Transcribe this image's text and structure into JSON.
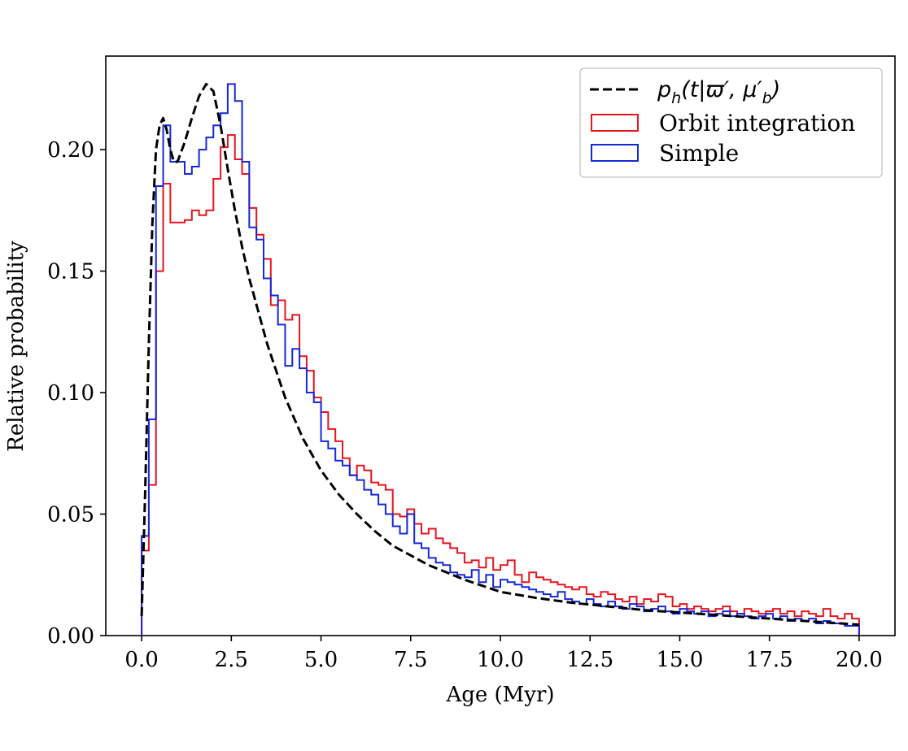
{
  "chart_data": {
    "type": "line",
    "xlabel": "Age (Myr)",
    "ylabel": "Relative probability",
    "xlim": [
      -1.0,
      21.0
    ],
    "ylim": [
      0.0,
      0.2385
    ],
    "xticks": [
      "0.0",
      "2.5",
      "5.0",
      "7.5",
      "10.0",
      "12.5",
      "15.0",
      "17.5",
      "20.0"
    ],
    "yticks": [
      "0.00",
      "0.05",
      "0.10",
      "0.15",
      "0.20"
    ],
    "legend_position": "top-right",
    "grid": false,
    "bins": {
      "start": 0.0,
      "width": 0.2,
      "count": 100
    },
    "curve": {
      "name_parts": [
        "p",
        "h",
        "(t|ϖ′, μ′",
        "b",
        ")"
      ],
      "color": "#000000",
      "style": "dashed",
      "x": [
        0.0,
        0.1,
        0.2,
        0.3,
        0.4,
        0.5,
        0.6,
        0.7,
        0.8,
        0.9,
        1.0,
        1.2,
        1.4,
        1.6,
        1.8,
        2.0,
        2.2,
        2.4,
        2.6,
        2.8,
        3.0,
        3.5,
        4.0,
        4.5,
        5.0,
        5.5,
        6.0,
        6.5,
        7.0,
        7.5,
        8.0,
        9.0,
        10.0,
        11.0,
        12.0,
        13.0,
        14.0,
        15.0,
        16.0,
        17.0,
        18.0,
        19.0,
        20.0
      ],
      "y": [
        0.008,
        0.06,
        0.12,
        0.17,
        0.2,
        0.21,
        0.213,
        0.208,
        0.2,
        0.195,
        0.195,
        0.203,
        0.213,
        0.222,
        0.227,
        0.224,
        0.21,
        0.192,
        0.175,
        0.16,
        0.147,
        0.12,
        0.098,
        0.081,
        0.068,
        0.058,
        0.05,
        0.043,
        0.037,
        0.033,
        0.029,
        0.023,
        0.018,
        0.0155,
        0.0135,
        0.012,
        0.0105,
        0.0095,
        0.0085,
        0.0075,
        0.0065,
        0.0055,
        0.0045
      ]
    },
    "series": [
      {
        "name": "Orbit integration",
        "color": "#e8141e",
        "values": [
          0.035,
          0.062,
          0.15,
          0.186,
          0.17,
          0.17,
          0.171,
          0.175,
          0.173,
          0.175,
          0.188,
          0.201,
          0.206,
          0.196,
          0.19,
          0.176,
          0.165,
          0.155,
          0.136,
          0.138,
          0.13,
          0.132,
          0.115,
          0.109,
          0.098,
          0.092,
          0.085,
          0.08,
          0.073,
          0.066,
          0.07,
          0.068,
          0.063,
          0.062,
          0.06,
          0.05,
          0.049,
          0.052,
          0.046,
          0.042,
          0.044,
          0.04,
          0.038,
          0.036,
          0.034,
          0.03,
          0.031,
          0.028,
          0.032,
          0.027,
          0.029,
          0.031,
          0.025,
          0.022,
          0.026,
          0.024,
          0.023,
          0.022,
          0.021,
          0.02,
          0.019,
          0.02,
          0.017,
          0.016,
          0.018,
          0.017,
          0.015,
          0.014,
          0.016,
          0.013,
          0.015,
          0.014,
          0.017,
          0.016,
          0.012,
          0.013,
          0.011,
          0.012,
          0.011,
          0.01,
          0.011,
          0.012,
          0.01,
          0.009,
          0.011,
          0.01,
          0.009,
          0.01,
          0.011,
          0.009,
          0.01,
          0.008,
          0.01,
          0.009,
          0.008,
          0.011,
          0.008,
          0.007,
          0.009,
          0.007
        ]
      },
      {
        "name": "Simple",
        "color": "#1428dc",
        "values": [
          0.041,
          0.089,
          0.185,
          0.21,
          0.195,
          0.195,
          0.19,
          0.193,
          0.2,
          0.205,
          0.21,
          0.215,
          0.227,
          0.22,
          0.195,
          0.168,
          0.163,
          0.147,
          0.14,
          0.128,
          0.111,
          0.118,
          0.11,
          0.1,
          0.096,
          0.08,
          0.077,
          0.072,
          0.07,
          0.066,
          0.064,
          0.06,
          0.058,
          0.054,
          0.05,
          0.045,
          0.042,
          0.05,
          0.038,
          0.036,
          0.032,
          0.03,
          0.029,
          0.026,
          0.025,
          0.024,
          0.027,
          0.022,
          0.025,
          0.02,
          0.023,
          0.022,
          0.021,
          0.02,
          0.019,
          0.018,
          0.017,
          0.016,
          0.018,
          0.015,
          0.014,
          0.013,
          0.015,
          0.013,
          0.012,
          0.014,
          0.012,
          0.011,
          0.013,
          0.012,
          0.01,
          0.011,
          0.012,
          0.01,
          0.009,
          0.011,
          0.01,
          0.009,
          0.01,
          0.008,
          0.009,
          0.01,
          0.008,
          0.009,
          0.008,
          0.007,
          0.008,
          0.009,
          0.007,
          0.008,
          0.006,
          0.007,
          0.006,
          0.007,
          0.005,
          0.006,
          0.005,
          0.005,
          0.004,
          0.004
        ]
      }
    ]
  }
}
